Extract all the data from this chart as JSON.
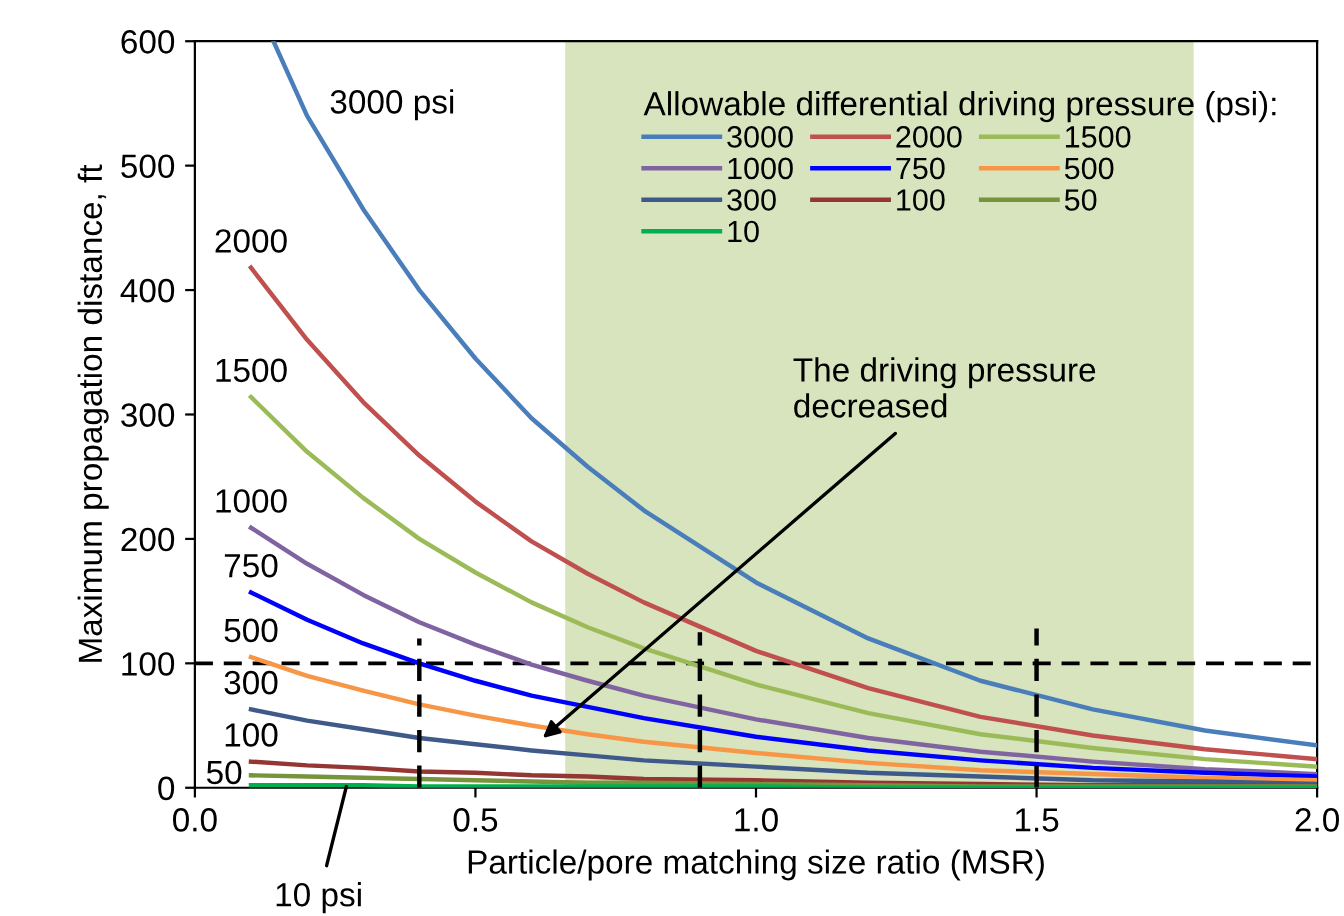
{
  "chart_data": {
    "type": "line",
    "xlabel": "Particle/pore matching size ratio (MSR)",
    "ylabel": "Maximum propagation distance, ft",
    "legend_title": "Allowable differential driving pressure (psi):",
    "x": [
      0.1,
      0.2,
      0.3,
      0.4,
      0.5,
      0.6,
      0.7,
      0.8,
      1.0,
      1.2,
      1.4,
      1.6,
      1.8,
      2.0
    ],
    "series": [
      {
        "name": "3000",
        "color": "#4a7ebb",
        "x": [
          0.14,
          0.2,
          0.3,
          0.4,
          0.5,
          0.6,
          0.7,
          0.8,
          1.0,
          1.2,
          1.4,
          1.6,
          1.8,
          2.0
        ],
        "values": [
          600,
          540,
          465,
          400,
          345,
          297,
          258,
          223,
          165,
          120,
          86,
          63,
          46,
          34
        ]
      },
      {
        "name": "2000",
        "color": "#c0504d",
        "values": [
          418,
          360,
          310,
          267,
          230,
          198,
          172,
          149,
          110,
          80,
          57,
          42,
          31,
          23
        ]
      },
      {
        "name": "1500",
        "color": "#9bbb59",
        "values": [
          314,
          270,
          233,
          200,
          173,
          149,
          129,
          112,
          83,
          60,
          43,
          32,
          23,
          17
        ]
      },
      {
        "name": "1000",
        "color": "#8064a2",
        "values": [
          209,
          180,
          155,
          133,
          115,
          99,
          86,
          74,
          55,
          40,
          29,
          21,
          15,
          11
        ]
      },
      {
        "name": "750",
        "color": "#0000ff",
        "values": [
          157,
          135,
          116,
          100,
          86,
          74,
          65,
          56,
          41,
          30,
          22,
          16,
          12,
          9
        ]
      },
      {
        "name": "500",
        "color": "#f79646",
        "values": [
          105,
          90,
          78,
          67,
          58,
          50,
          43,
          37,
          28,
          20,
          14,
          11,
          8,
          6
        ]
      },
      {
        "name": "300",
        "color": "#3f5a8a",
        "values": [
          63,
          54,
          47,
          40,
          35,
          30,
          26,
          22,
          17,
          12,
          9,
          6,
          5,
          3
        ]
      },
      {
        "name": "100",
        "color": "#943634",
        "values": [
          21,
          18,
          16,
          13,
          12,
          10,
          9,
          7,
          6,
          4,
          3,
          2,
          2,
          1
        ]
      },
      {
        "name": "50",
        "color": "#77933c",
        "values": [
          10,
          9,
          8,
          7,
          6,
          5,
          4,
          4,
          3,
          2,
          1,
          1,
          1,
          1
        ]
      },
      {
        "name": "10",
        "color": "#00b050",
        "values": [
          2,
          2,
          2,
          1,
          1,
          1,
          1,
          1,
          1,
          0,
          0,
          0,
          0,
          0
        ]
      },
      {
        "color": "#000000",
        "line_style": "dashed",
        "x": [
          0.4,
          0.4
        ],
        "values": [
          0,
          120
        ]
      },
      {
        "color": "#000000",
        "line_style": "dashed",
        "x": [
          0.9,
          0.9
        ],
        "values": [
          0,
          125
        ]
      },
      {
        "color": "#000000",
        "line_style": "dashed",
        "x": [
          1.5,
          1.5
        ],
        "values": [
          0,
          128
        ]
      }
    ],
    "annotations": [
      {
        "text": "3000 psi",
        "x": 0.2,
        "y": 540
      },
      {
        "text": "2000",
        "x": 0.1,
        "y": 418
      },
      {
        "text": "1500",
        "x": 0.1,
        "y": 314
      },
      {
        "text": "1000",
        "x": 0.1,
        "y": 209
      },
      {
        "text": "750",
        "x": 0.1,
        "y": 157
      },
      {
        "text": "500",
        "x": 0.1,
        "y": 105
      },
      {
        "text": "300",
        "x": 0.1,
        "y": 63
      },
      {
        "text": "100",
        "x": 0.1,
        "y": 21
      },
      {
        "text": "50",
        "x": 0.1,
        "y": 10
      },
      {
        "text": "10 psi",
        "x": 0.27,
        "y": 1
      },
      {
        "text": "The driving pressure\ndecreased",
        "x": 0.62,
        "y": 40
      }
    ],
    "ref_lines": [
      {
        "axis": "y",
        "value": 100,
        "color": "#000000",
        "line_style": "dashed"
      }
    ],
    "bands": [
      {
        "axis": "x",
        "from": 0.66,
        "to": 1.78,
        "color": "#d7e4bd"
      }
    ],
    "xlim": [
      0,
      2
    ],
    "ylim": [
      0,
      600
    ],
    "xticks": [
      {
        "value": 0,
        "label": "0.0"
      },
      {
        "value": 0.5,
        "label": "0.5"
      },
      {
        "value": 1,
        "label": "1.0"
      },
      {
        "value": 1.5,
        "label": "1.5"
      },
      {
        "value": 2,
        "label": "2.0"
      }
    ],
    "yticks": [
      0,
      100,
      200,
      300,
      400,
      500,
      600
    ],
    "grid": false,
    "legend": "top right",
    "marker": "none",
    "line_style": "solid"
  }
}
